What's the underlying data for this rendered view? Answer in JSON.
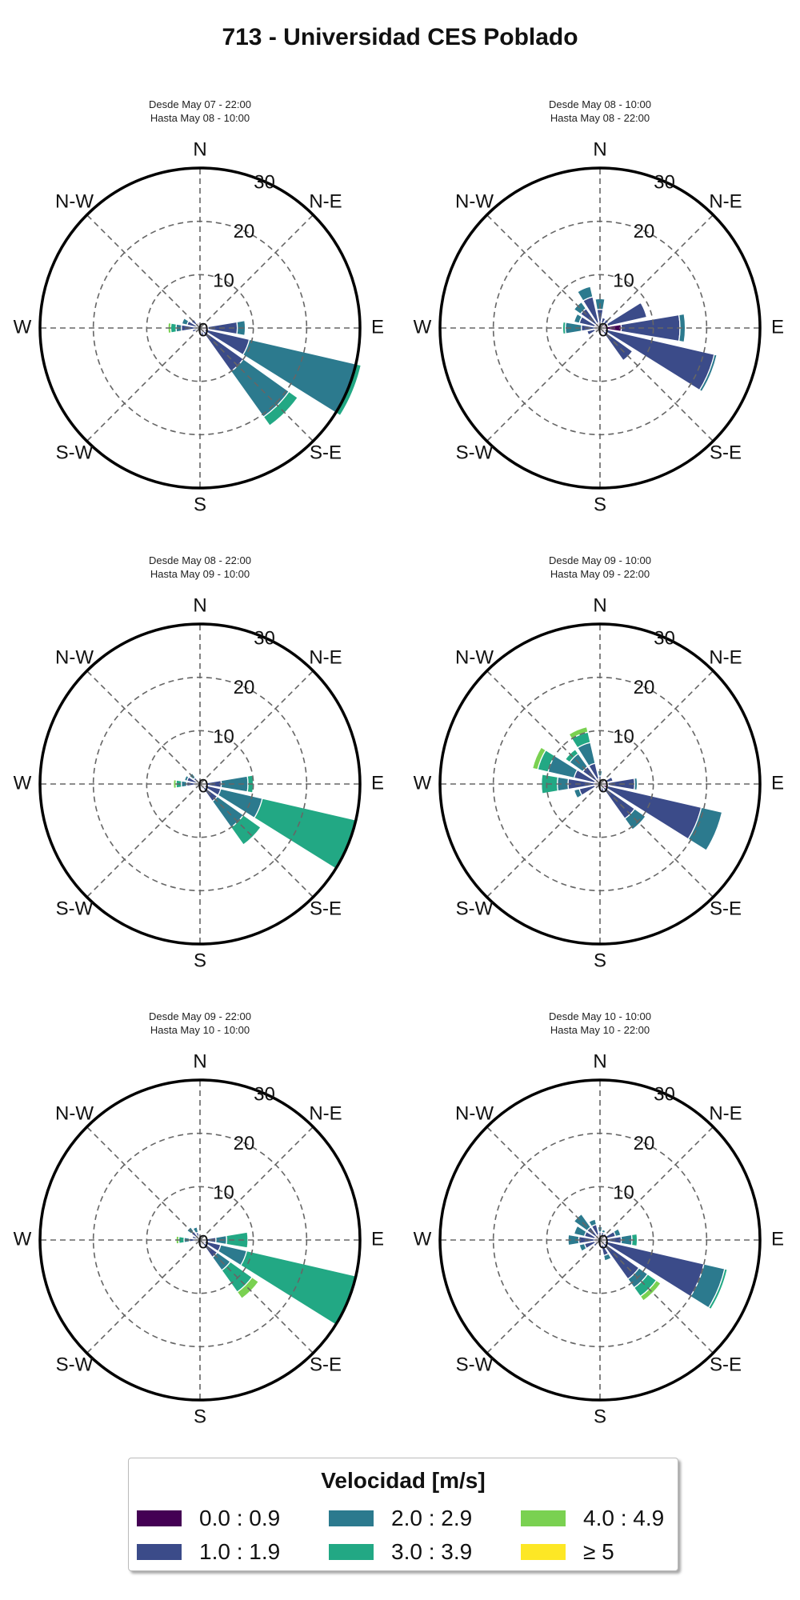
{
  "title": "713 - Universidad CES Poblado",
  "legend": {
    "title": "Velocidad [m/s]",
    "items": [
      {
        "label": "0.0 : 0.9",
        "color": "#440154"
      },
      {
        "label": "1.0 : 1.9",
        "color": "#3b4b89"
      },
      {
        "label": "2.0 : 2.9",
        "color": "#2c7a8e"
      },
      {
        "label": "3.0 : 3.9",
        "color": "#22a884"
      },
      {
        "label": "4.0 : 4.9",
        "color": "#7ad151"
      },
      {
        "label": "≥ 5",
        "color": "#fde725"
      }
    ]
  },
  "compass_labels": [
    "N",
    "N-E",
    "E",
    "S-E",
    "S",
    "S-W",
    "W",
    "N-W"
  ],
  "radial_ticks": [
    "0",
    "10",
    "20",
    "30"
  ],
  "chart_data": [
    {
      "type": "windrose",
      "subtitle_line1": "Desde May 07 - 22:00",
      "subtitle_line2": "Hasta May 08 - 10:00",
      "rlim": [
        0,
        30
      ],
      "directions_deg": [
        0,
        22.5,
        45,
        67.5,
        90,
        112.5,
        135,
        157.5,
        180,
        202.5,
        225,
        247.5,
        270,
        292.5,
        315,
        337.5
      ],
      "speed_bins": [
        "0.0 : 0.9",
        "1.0 : 1.9",
        "2.0 : 2.9",
        "3.0 : 3.9",
        "4.0 : 4.9",
        "≥ 5"
      ],
      "frequency_stacks": [
        [
          0.5,
          0,
          0,
          0,
          0,
          0
        ],
        [
          0.5,
          0,
          0,
          0,
          0,
          0
        ],
        [
          0.5,
          0,
          0,
          0,
          0,
          0
        ],
        [
          0.5,
          0,
          0,
          0,
          0,
          0
        ],
        [
          1.5,
          5.5,
          1.5,
          0,
          0,
          0
        ],
        [
          1,
          8.5,
          20.5,
          1,
          0,
          0
        ],
        [
          1,
          9,
          10.5,
          2,
          0,
          0
        ],
        [
          0.5,
          1,
          0,
          0,
          0,
          0
        ],
        [
          0.5,
          0,
          0,
          0,
          0,
          0
        ],
        [
          0.5,
          0,
          0,
          0,
          0,
          0
        ],
        [
          0.5,
          0,
          0,
          0,
          0,
          0
        ],
        [
          0.5,
          1,
          0,
          0,
          0,
          0
        ],
        [
          0.5,
          3,
          1,
          1,
          0.5,
          0
        ],
        [
          0.5,
          2,
          1,
          0,
          0,
          0
        ],
        [
          1,
          1,
          0,
          0,
          0,
          0
        ],
        [
          1,
          0,
          0,
          0,
          0,
          0
        ]
      ]
    },
    {
      "type": "windrose",
      "subtitle_line1": "Desde May 08 - 10:00",
      "subtitle_line2": "Hasta May 08 - 22:00",
      "rlim": [
        0,
        30
      ],
      "directions_deg": [
        0,
        22.5,
        45,
        67.5,
        90,
        112.5,
        135,
        157.5,
        180,
        202.5,
        225,
        247.5,
        270,
        292.5,
        315,
        337.5
      ],
      "speed_bins": [
        "0.0 : 0.9",
        "1.0 : 1.9",
        "2.0 : 2.9",
        "3.0 : 3.9",
        "4.0 : 4.9",
        "≥ 5"
      ],
      "frequency_stacks": [
        [
          0.5,
          3,
          2,
          0,
          0,
          0
        ],
        [
          1,
          1,
          0,
          0,
          0,
          0
        ],
        [
          1,
          1,
          0,
          0,
          0,
          0
        ],
        [
          1.5,
          7.5,
          0,
          0,
          0,
          0
        ],
        [
          4,
          11,
          1,
          0,
          0,
          0
        ],
        [
          1,
          21,
          0.5,
          0,
          0,
          0
        ],
        [
          1,
          6.5,
          0,
          0,
          0,
          0
        ],
        [
          1,
          0,
          0,
          0,
          0,
          0
        ],
        [
          0.5,
          0,
          0,
          0,
          0,
          0
        ],
        [
          0.5,
          0,
          0,
          0,
          0,
          0
        ],
        [
          0.5,
          0,
          0,
          0,
          0,
          0
        ],
        [
          1,
          1.5,
          0,
          0,
          0,
          0
        ],
        [
          0.5,
          3,
          3,
          0.5,
          0,
          0
        ],
        [
          1,
          3,
          1,
          0,
          0,
          0
        ],
        [
          1,
          3.5,
          1.5,
          0,
          0,
          0
        ],
        [
          1,
          5,
          2,
          0,
          0,
          0
        ]
      ]
    },
    {
      "type": "windrose",
      "subtitle_line1": "Desde May 08 - 22:00",
      "subtitle_line2": "Hasta May 09 - 10:00",
      "rlim": [
        0,
        30
      ],
      "directions_deg": [
        0,
        22.5,
        45,
        67.5,
        90,
        112.5,
        135,
        157.5,
        180,
        202.5,
        225,
        247.5,
        270,
        292.5,
        315,
        337.5
      ],
      "speed_bins": [
        "0.0 : 0.9",
        "1.0 : 1.9",
        "2.0 : 2.9",
        "3.0 : 3.9",
        "4.0 : 4.9",
        "≥ 5"
      ],
      "frequency_stacks": [
        [
          0.5,
          0,
          0,
          0,
          0,
          0
        ],
        [
          0.5,
          0,
          0,
          0,
          0,
          0
        ],
        [
          0.5,
          0,
          0,
          0,
          0,
          0
        ],
        [
          0.5,
          0,
          0,
          0,
          0,
          0
        ],
        [
          1,
          3,
          5,
          1,
          0,
          0
        ],
        [
          1,
          3,
          8,
          18,
          0,
          0
        ],
        [
          1,
          3,
          6,
          4,
          0,
          0
        ],
        [
          0.5,
          0.5,
          0,
          0,
          0,
          0
        ],
        [
          0.5,
          0,
          0,
          0,
          0,
          0
        ],
        [
          0.5,
          0,
          0,
          0,
          0,
          0
        ],
        [
          0.5,
          0,
          0,
          0,
          0,
          0
        ],
        [
          0.5,
          0.5,
          0,
          0,
          0,
          0
        ],
        [
          0.5,
          2,
          1,
          1,
          0.5,
          0
        ],
        [
          0.5,
          2,
          0.5,
          0,
          0,
          0
        ],
        [
          0.5,
          1,
          1,
          0,
          0,
          0
        ],
        [
          0.5,
          0,
          0,
          0,
          0,
          0
        ]
      ]
    },
    {
      "type": "windrose",
      "subtitle_line1": "Desde May 09 - 10:00",
      "subtitle_line2": "Hasta May 09 - 22:00",
      "rlim": [
        0,
        30
      ],
      "directions_deg": [
        0,
        22.5,
        45,
        67.5,
        90,
        112.5,
        135,
        157.5,
        180,
        202.5,
        225,
        247.5,
        270,
        292.5,
        315,
        337.5
      ],
      "speed_bins": [
        "0.0 : 0.9",
        "1.0 : 1.9",
        "2.0 : 2.9",
        "3.0 : 3.9",
        "4.0 : 4.9",
        "≥ 5"
      ],
      "frequency_stacks": [
        [
          0.5,
          1,
          1,
          0,
          0,
          0
        ],
        [
          0.5,
          0.5,
          0,
          0,
          0,
          0
        ],
        [
          0.5,
          0,
          0,
          0,
          0,
          0
        ],
        [
          1,
          1.5,
          0,
          0,
          0,
          0
        ],
        [
          1.5,
          5,
          0.5,
          0,
          0,
          0
        ],
        [
          1.5,
          18,
          4,
          0,
          0,
          0
        ],
        [
          1,
          7,
          2.5,
          0,
          0,
          0
        ],
        [
          0.5,
          1,
          0,
          0,
          0,
          0
        ],
        [
          0.5,
          0,
          0,
          0,
          0,
          0
        ],
        [
          0.5,
          0,
          0,
          0,
          0,
          0
        ],
        [
          0.5,
          0.5,
          0,
          0,
          0,
          0
        ],
        [
          1,
          3,
          1,
          0,
          0,
          0
        ],
        [
          1,
          5,
          2,
          3,
          0,
          0
        ],
        [
          1,
          4,
          5,
          2,
          1,
          0
        ],
        [
          1,
          3,
          3,
          1,
          0,
          0
        ],
        [
          1,
          3,
          4,
          2,
          1,
          0
        ]
      ]
    },
    {
      "type": "windrose",
      "subtitle_line1": "Desde May 09 - 22:00",
      "subtitle_line2": "Hasta May 10 - 10:00",
      "rlim": [
        0,
        30
      ],
      "directions_deg": [
        0,
        22.5,
        45,
        67.5,
        90,
        112.5,
        135,
        157.5,
        180,
        202.5,
        225,
        247.5,
        270,
        292.5,
        315,
        337.5
      ],
      "speed_bins": [
        "0.0 : 0.9",
        "1.0 : 1.9",
        "2.0 : 2.9",
        "3.0 : 3.9",
        "4.0 : 4.9",
        "≥ 5"
      ],
      "frequency_stacks": [
        [
          0.5,
          0,
          0,
          0,
          0,
          0
        ],
        [
          0.5,
          0,
          0,
          0,
          0,
          0
        ],
        [
          0.5,
          0,
          0,
          0,
          0,
          0
        ],
        [
          0.5,
          0,
          0,
          0,
          0,
          0
        ],
        [
          1,
          2,
          2,
          4,
          0,
          0
        ],
        [
          1,
          3,
          5,
          21,
          0,
          0
        ],
        [
          1,
          3,
          3,
          5,
          1.5,
          0
        ],
        [
          0.5,
          0.5,
          0,
          0,
          0,
          0
        ],
        [
          0.5,
          0,
          0,
          0,
          0,
          0
        ],
        [
          0.5,
          0,
          0,
          0,
          0,
          0
        ],
        [
          0.5,
          0,
          0,
          0,
          0,
          0
        ],
        [
          0.5,
          0.5,
          0,
          0,
          0,
          0
        ],
        [
          0.5,
          1.5,
          1,
          1,
          0.5,
          0
        ],
        [
          0.5,
          1,
          0,
          0,
          0,
          0
        ],
        [
          0.5,
          1.5,
          1,
          0,
          0,
          0
        ],
        [
          0.5,
          1,
          1,
          0,
          0,
          0
        ]
      ]
    },
    {
      "type": "windrose",
      "subtitle_line1": "Desde May 10 - 10:00",
      "subtitle_line2": "Hasta May 10 - 22:00",
      "rlim": [
        0,
        30
      ],
      "directions_deg": [
        0,
        22.5,
        45,
        67.5,
        90,
        112.5,
        135,
        157.5,
        180,
        202.5,
        225,
        247.5,
        270,
        292.5,
        315,
        337.5
      ],
      "speed_bins": [
        "0.0 : 0.9",
        "1.0 : 1.9",
        "2.0 : 2.9",
        "3.0 : 3.9",
        "4.0 : 4.9",
        "≥ 5"
      ],
      "frequency_stacks": [
        [
          0.5,
          1,
          1,
          0,
          0,
          0
        ],
        [
          0.5,
          1,
          0.5,
          0,
          0,
          0
        ],
        [
          0.5,
          1,
          0,
          0,
          0,
          0
        ],
        [
          1,
          2,
          1,
          0,
          0,
          0
        ],
        [
          1,
          3,
          2,
          1,
          0,
          0
        ],
        [
          1,
          19,
          4,
          0.5,
          0,
          0
        ],
        [
          1,
          8,
          2,
          2,
          1,
          0
        ],
        [
          1,
          2,
          1,
          0,
          0,
          0
        ],
        [
          0.5,
          0,
          0,
          0,
          0,
          0
        ],
        [
          0.5,
          0,
          0,
          0,
          0,
          0
        ],
        [
          0.5,
          1,
          0,
          0,
          0,
          0
        ],
        [
          1,
          2,
          1,
          0,
          0,
          0
        ],
        [
          1,
          3,
          2,
          0,
          0,
          0
        ],
        [
          1,
          2,
          2,
          0,
          0,
          0
        ],
        [
          1,
          2,
          3,
          0,
          0,
          0
        ],
        [
          1,
          2,
          1,
          0,
          0,
          0
        ]
      ]
    }
  ]
}
